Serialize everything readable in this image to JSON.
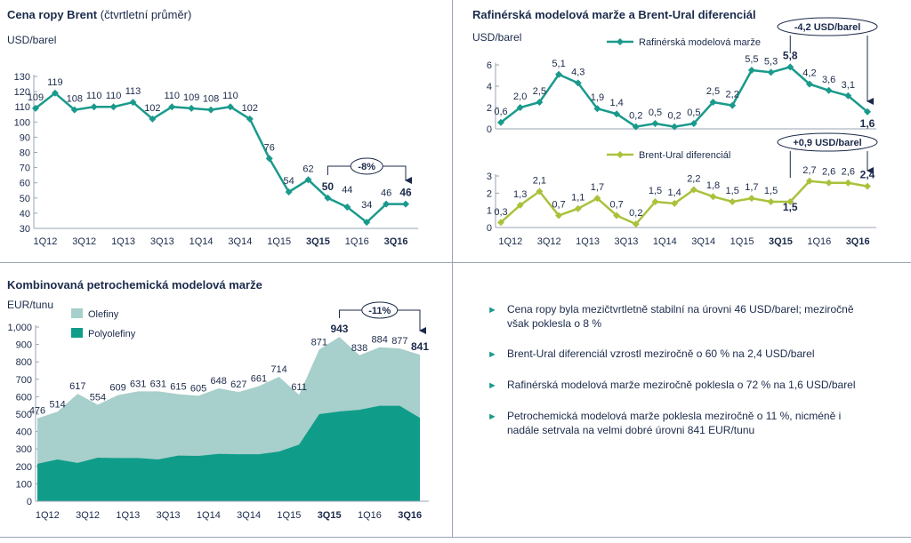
{
  "panel1": {
    "title_bold": "Cena ropy Brent",
    "title_light": "(čtvrtletní průměr)",
    "unit": "USD/barel"
  },
  "panel2": {
    "title": "Rafinérská modelová marže a Brent-Ural diferenciál",
    "unit": "USD/barel"
  },
  "panel3": {
    "title": "Kombinovaná petrochemická modelová marže",
    "unit": "EUR/tunu"
  },
  "bullets": [
    "Cena ropy byla mezičtvrtletně stabilní na úrovni 46 USD/barel; meziročně však poklesla o 8 %",
    "Brent-Ural diferenciál vzrostl meziročně o 60 % na 2,4 USD/barel",
    "Rafinérská modelová marže meziročně poklesla o 72 % na 1,6 USD/barel",
    "Petrochemická modelová marže poklesla meziročně o 11 %, nicméně i nadále setrvala na velmi dobré úrovni 841 EUR/tunu"
  ],
  "colors": {
    "teal": "#1a9a8c",
    "lime": "#a9c23b",
    "olefiny": "#a7cfcb",
    "polyolefiny": "#0f9d8a",
    "arrow": "#1a9a8c"
  },
  "chart_data": [
    {
      "id": "brent",
      "type": "line",
      "x_ticks": [
        "1Q12",
        "3Q12",
        "1Q13",
        "3Q13",
        "1Q14",
        "3Q14",
        "1Q15",
        "3Q15",
        "1Q16",
        "3Q16"
      ],
      "bold_ticks": [
        "3Q15",
        "3Q16"
      ],
      "values": [
        109,
        119,
        108,
        110,
        110,
        113,
        102,
        110,
        109,
        108,
        110,
        102,
        76,
        54,
        62,
        50,
        44,
        34,
        46,
        46
      ],
      "labels": [
        "109",
        "119",
        "108",
        "110",
        "110",
        "113",
        "102",
        "110",
        "109",
        "108",
        "110",
        "102",
        "76",
        "54",
        "62",
        "50",
        "44",
        "34",
        "46",
        "46"
      ],
      "bold_indices": [
        15,
        19
      ],
      "ylim": [
        30,
        130
      ],
      "y_ticks": [
        "30",
        "40",
        "50",
        "60",
        "70",
        "80",
        "90",
        "100",
        "110",
        "120",
        "130"
      ],
      "annotation": {
        "text": "-8%",
        "from": 15,
        "to": 19
      }
    },
    {
      "id": "refining",
      "type": "line",
      "legend": "Rafinérská modelová marže",
      "values": [
        0.6,
        2.0,
        2.5,
        5.1,
        4.3,
        1.9,
        1.4,
        0.2,
        0.5,
        0.2,
        0.5,
        2.5,
        2.2,
        5.5,
        5.3,
        5.8,
        4.2,
        3.6,
        3.1,
        1.6
      ],
      "labels": [
        "0,6",
        "2,0",
        "2,5",
        "5,1",
        "4,3",
        "1,9",
        "1,4",
        "0,2",
        "0,5",
        "0,2",
        "0,5",
        "2,5",
        "2,2",
        "5,5",
        "5,3",
        "5,8",
        "4,2",
        "3,6",
        "3,1",
        "1,6"
      ],
      "bold_indices": [
        15,
        19
      ],
      "ylim": [
        0,
        6
      ],
      "y_ticks": [
        "0",
        "2",
        "4",
        "6"
      ],
      "annotation": {
        "text": "-4,2 USD/barel"
      }
    },
    {
      "id": "brent_ural",
      "type": "line",
      "legend": "Brent-Ural diferenciál",
      "x_ticks": [
        "1Q12",
        "3Q12",
        "1Q13",
        "3Q13",
        "1Q14",
        "3Q14",
        "1Q15",
        "3Q15",
        "1Q16",
        "3Q16"
      ],
      "bold_ticks": [
        "3Q15",
        "3Q16"
      ],
      "values": [
        0.3,
        1.3,
        2.1,
        0.7,
        1.1,
        1.7,
        0.7,
        0.2,
        1.5,
        1.4,
        2.2,
        1.8,
        1.5,
        1.7,
        1.5,
        1.5,
        2.7,
        2.6,
        2.6,
        2.4
      ],
      "labels": [
        "0,3",
        "1,3",
        "2,1",
        "0,7",
        "1,1",
        "1,7",
        "0,7",
        "0,2",
        "1,5",
        "1,4",
        "2,2",
        "1,8",
        "1,5",
        "1,7",
        "1,5",
        "1,5",
        "2,7",
        "2,6",
        "2,6",
        "2,4"
      ],
      "bold_indices": [
        15,
        19
      ],
      "ylim": [
        0,
        3
      ],
      "y_ticks": [
        "0",
        "1",
        "2",
        "3"
      ],
      "annotation": {
        "text": "+0,9 USD/barel"
      }
    },
    {
      "id": "petrochem",
      "type": "area",
      "x_ticks": [
        "1Q12",
        "3Q12",
        "1Q13",
        "3Q13",
        "1Q14",
        "3Q14",
        "1Q15",
        "3Q15",
        "1Q16",
        "3Q16"
      ],
      "bold_ticks": [
        "3Q15",
        "3Q16"
      ],
      "total": [
        476,
        514,
        617,
        554,
        609,
        631,
        631,
        615,
        605,
        648,
        627,
        661,
        714,
        611,
        871,
        943,
        838,
        884,
        877,
        841
      ],
      "total_labels": [
        "476",
        "514",
        "617",
        "554",
        "609",
        "631",
        "631",
        "615",
        "605",
        "648",
        "627",
        "661",
        "714",
        "611",
        "871",
        "943",
        "838",
        "884",
        "877",
        "841"
      ],
      "polyolefiny": [
        215,
        240,
        220,
        250,
        248,
        248,
        240,
        262,
        260,
        272,
        270,
        270,
        285,
        325,
        500,
        515,
        525,
        548,
        548,
        478
      ],
      "bold_indices": [
        15,
        19
      ],
      "ylim": [
        0,
        1000
      ],
      "y_ticks": [
        "0",
        "100",
        "200",
        "300",
        "400",
        "500",
        "600",
        "700",
        "800",
        "900",
        "1,000"
      ],
      "legend": [
        "Olefiny",
        "Polyolefiny"
      ],
      "annotation": {
        "text": "-11%",
        "from": 15,
        "to": 19
      }
    }
  ]
}
